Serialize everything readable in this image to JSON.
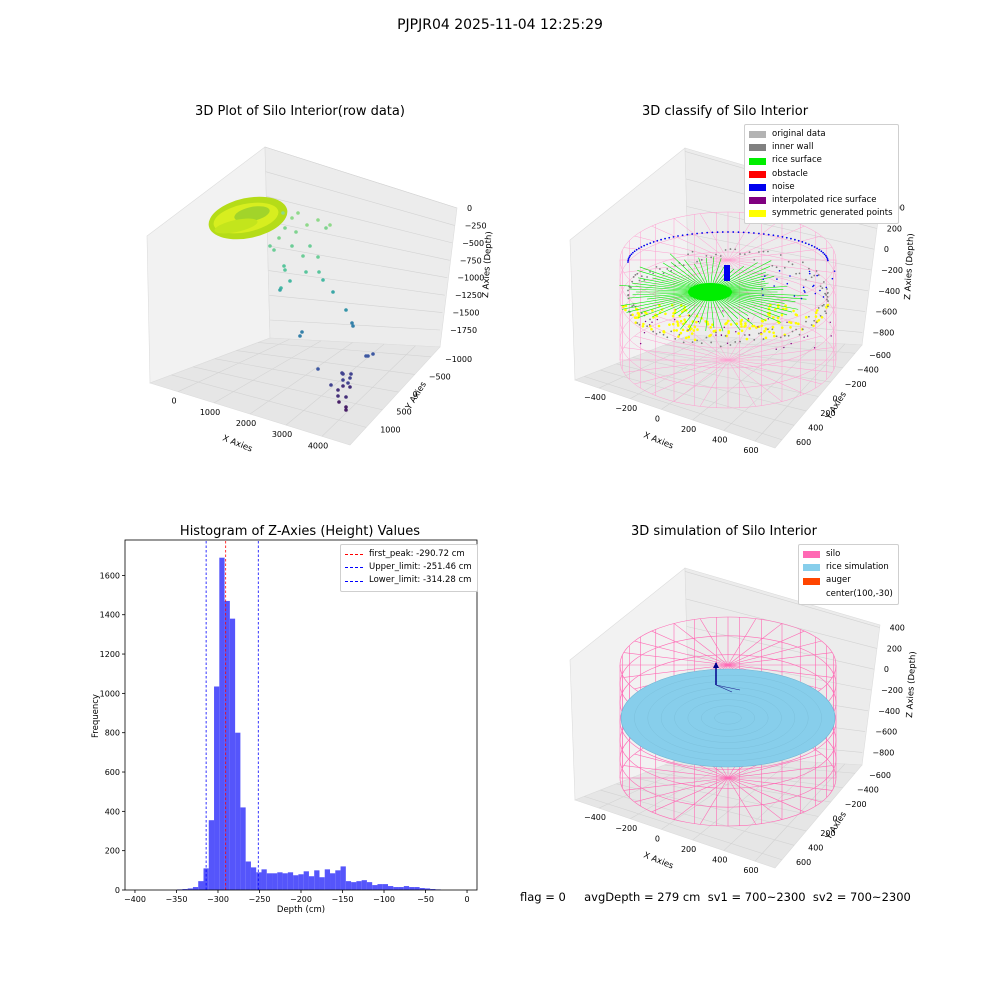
{
  "figure": {
    "suptitle": "PJPJR04 2025-11-04 12:25:29",
    "footer": "flag = 0     avgDepth = 279 cm  sv1 = 700~2300  sv2 = 700~2300"
  },
  "colors": {
    "original": "#b3b3b3",
    "inner_wall": "#808080",
    "rice_surface": "#00ee00",
    "obstacle": "#ff0000",
    "noise": "#0000ee",
    "interpolated": "#800080",
    "symmetric": "#ffff00",
    "silo": "#ff69b4",
    "rice_sim": "#87ceeb",
    "auger": "#ff4500",
    "hist_bar": "#4f4ffb",
    "peak_line": "#ff0000",
    "limit_line": "#0000ff"
  },
  "panels": {
    "p1": {
      "title": "3D Plot of Silo Interior(row data)",
      "xlabel": "X Axies",
      "ylabel": "Y Axies",
      "zlabel": "Z Axies (Depth)",
      "xticks": [
        "0",
        "1000",
        "2000",
        "3000",
        "4000"
      ],
      "yticks": [
        "−1000",
        "−500",
        "0",
        "500",
        "1000"
      ],
      "zticks": [
        "0",
        "−250",
        "−500",
        "−750",
        "−1000",
        "−1250",
        "−1500",
        "−1750"
      ]
    },
    "p2": {
      "title": "3D classify of Silo Interior",
      "xlabel": "X Axies",
      "ylabel": "Y Axies",
      "zlabel": "Z Axies (Depth)",
      "xticks": [
        "−400",
        "−200",
        "0",
        "200",
        "400",
        "600"
      ],
      "yticks": [
        "−600",
        "−400",
        "−200",
        "0",
        "200",
        "400",
        "600"
      ],
      "zticks": [
        "200",
        "200",
        "0",
        "−200",
        "−400",
        "−600",
        "−800"
      ],
      "legend": [
        {
          "label": "original data",
          "color": "#b3b3b3"
        },
        {
          "label": "inner wall",
          "color": "#808080"
        },
        {
          "label": "rice surface",
          "color": "#00ee00"
        },
        {
          "label": "obstacle",
          "color": "#ff0000"
        },
        {
          "label": "noise",
          "color": "#0000ee"
        },
        {
          "label": "interpolated rice surface",
          "color": "#800080"
        },
        {
          "label": "symmetric generated points",
          "color": "#ffff00"
        }
      ]
    },
    "p4": {
      "title": "3D simulation of Silo Interior",
      "xlabel": "X Axies",
      "ylabel": "Y Axies",
      "zlabel": "Z Axies (Depth)",
      "xticks": [
        "−400",
        "−200",
        "0",
        "200",
        "400",
        "600"
      ],
      "yticks": [
        "−600",
        "−400",
        "−200",
        "0",
        "200",
        "400",
        "600"
      ],
      "zticks": [
        "400",
        "200",
        "0",
        "−200",
        "−400",
        "−600",
        "−800"
      ],
      "legend": [
        {
          "label": "silo",
          "color": "#ff69b4"
        },
        {
          "label": "rice simulation",
          "color": "#87ceeb"
        },
        {
          "label": "auger",
          "color": "#ff4500"
        },
        {
          "label": "center(100,-30)",
          "color": ""
        }
      ]
    }
  },
  "chart_data": [
    {
      "type": "bar",
      "title": "Histogram of Z-Axies (Height) Values",
      "xlabel": "Depth (cm)",
      "ylabel": "Frequency",
      "xlim": [
        -412,
        12
      ],
      "ylim": [
        0,
        1780
      ],
      "xticks": [
        -400,
        -350,
        -300,
        -250,
        -200,
        -150,
        -100,
        -50,
        0
      ],
      "yticks": [
        0,
        200,
        400,
        600,
        800,
        1000,
        1200,
        1400,
        1600
      ],
      "bin_width": 6.35,
      "bin_start": -400,
      "values": [
        0,
        0,
        0,
        0,
        0,
        0,
        0,
        0,
        3,
        5,
        8,
        15,
        45,
        110,
        355,
        1035,
        1690,
        1470,
        1380,
        800,
        420,
        145,
        115,
        90,
        105,
        85,
        85,
        90,
        85,
        90,
        75,
        80,
        95,
        70,
        100,
        65,
        105,
        85,
        100,
        120,
        45,
        40,
        45,
        50,
        40,
        25,
        30,
        30,
        20,
        15,
        15,
        20,
        15,
        15,
        10,
        8,
        5,
        3
      ],
      "lines": [
        {
          "label": "first_peak: -290.72 cm",
          "x": -290.72,
          "color": "#ff0000"
        },
        {
          "label": "Upper_limit: -251.46 cm",
          "x": -251.46,
          "color": "#0000ff"
        },
        {
          "label": "Lower_limit: -314.28 cm",
          "x": -314.28,
          "color": "#0000ff"
        }
      ]
    }
  ]
}
